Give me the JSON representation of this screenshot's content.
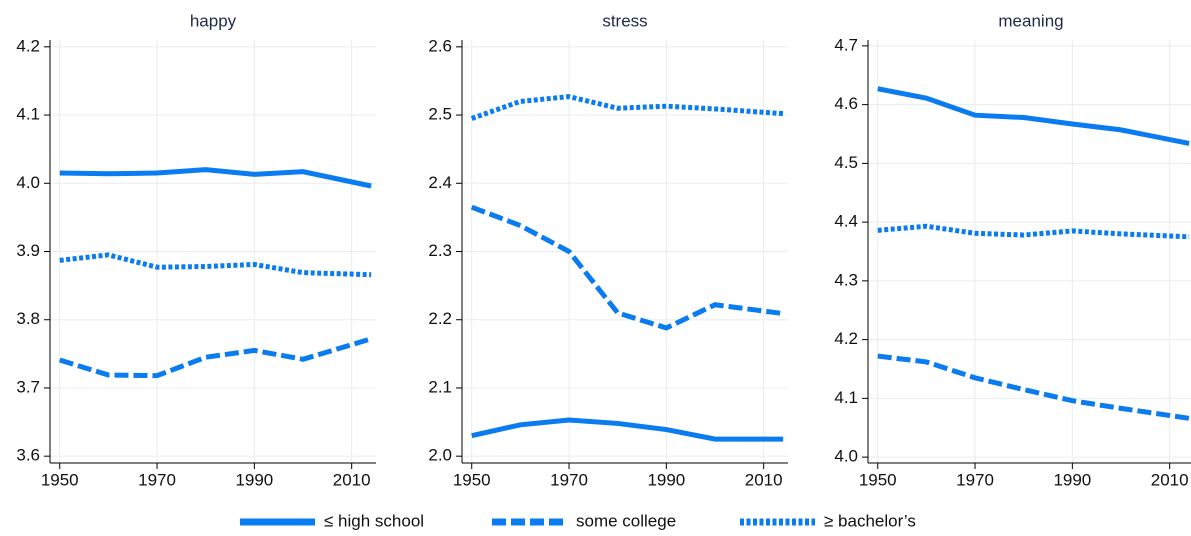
{
  "chart_data": [
    {
      "type": "line",
      "title": "happy",
      "x": [
        1950,
        1960,
        1970,
        1980,
        1990,
        2000,
        2014
      ],
      "xlim": [
        1948,
        2015
      ],
      "xticks": [
        1950,
        1970,
        1990,
        2010
      ],
      "ylim": [
        3.59,
        4.21
      ],
      "yticks": [
        3.6,
        3.7,
        3.8,
        3.9,
        {
          "value": 4.0,
          "label": "4.0"
        },
        4.1,
        4.2
      ],
      "grid": true,
      "series": [
        {
          "name": "≤ high school",
          "color": "#0a7cf0",
          "style": "solid",
          "values": [
            4.015,
            4.014,
            4.015,
            4.02,
            4.013,
            4.017,
            3.996
          ]
        },
        {
          "name": "some college",
          "color": "#0a7cf0",
          "style": "dashed",
          "values": [
            3.741,
            3.719,
            3.718,
            3.745,
            3.755,
            3.742,
            3.772
          ]
        },
        {
          "name": "≥ bachelor’s",
          "color": "#0a7cf0",
          "style": "dotted",
          "values": [
            3.887,
            3.895,
            3.877,
            3.878,
            3.881,
            3.869,
            3.866
          ]
        }
      ]
    },
    {
      "type": "line",
      "title": "stress",
      "x": [
        1950,
        1960,
        1970,
        1980,
        1990,
        2000,
        2014
      ],
      "xlim": [
        1948,
        2015
      ],
      "xticks": [
        1950,
        1970,
        1990,
        2010
      ],
      "ylim": [
        1.99,
        2.61
      ],
      "yticks": [
        {
          "value": 2.0,
          "label": "2.0"
        },
        2.1,
        2.2,
        2.3,
        2.4,
        2.5,
        2.6
      ],
      "grid": true,
      "series": [
        {
          "color": "#0a7cf0",
          "style": "solid",
          "values": [
            2.03,
            2.046,
            2.053,
            2.048,
            2.039,
            2.025,
            2.025
          ]
        },
        {
          "color": "#0a7cf0",
          "style": "dashed",
          "values": [
            2.365,
            2.338,
            2.3,
            2.21,
            2.188,
            2.222,
            2.209
          ]
        },
        {
          "color": "#0a7cf0",
          "style": "dotted",
          "values": [
            2.495,
            2.52,
            2.527,
            2.51,
            2.513,
            2.509,
            2.502
          ]
        }
      ]
    },
    {
      "type": "line",
      "title": "meaning",
      "x": [
        1950,
        1960,
        1970,
        1980,
        1990,
        2000,
        2014
      ],
      "xlim": [
        1948,
        2015
      ],
      "xticks": [
        1950,
        1970,
        1990,
        2010
      ],
      "ylim": [
        3.99,
        4.71
      ],
      "yticks": [
        {
          "value": 4.0,
          "label": "4.0"
        },
        4.1,
        4.2,
        4.3,
        4.4,
        4.5,
        4.6,
        4.7
      ],
      "grid": true,
      "series": [
        {
          "color": "#0a7cf0",
          "style": "solid",
          "values": [
            4.627,
            4.611,
            4.582,
            4.578,
            4.567,
            4.557,
            4.534
          ]
        },
        {
          "color": "#0a7cf0",
          "style": "dashed",
          "values": [
            4.172,
            4.162,
            4.135,
            4.115,
            4.096,
            4.083,
            4.066
          ]
        },
        {
          "color": "#0a7cf0",
          "style": "dotted",
          "values": [
            4.386,
            4.393,
            4.381,
            4.378,
            4.385,
            4.38,
            4.375
          ]
        }
      ]
    }
  ]
}
